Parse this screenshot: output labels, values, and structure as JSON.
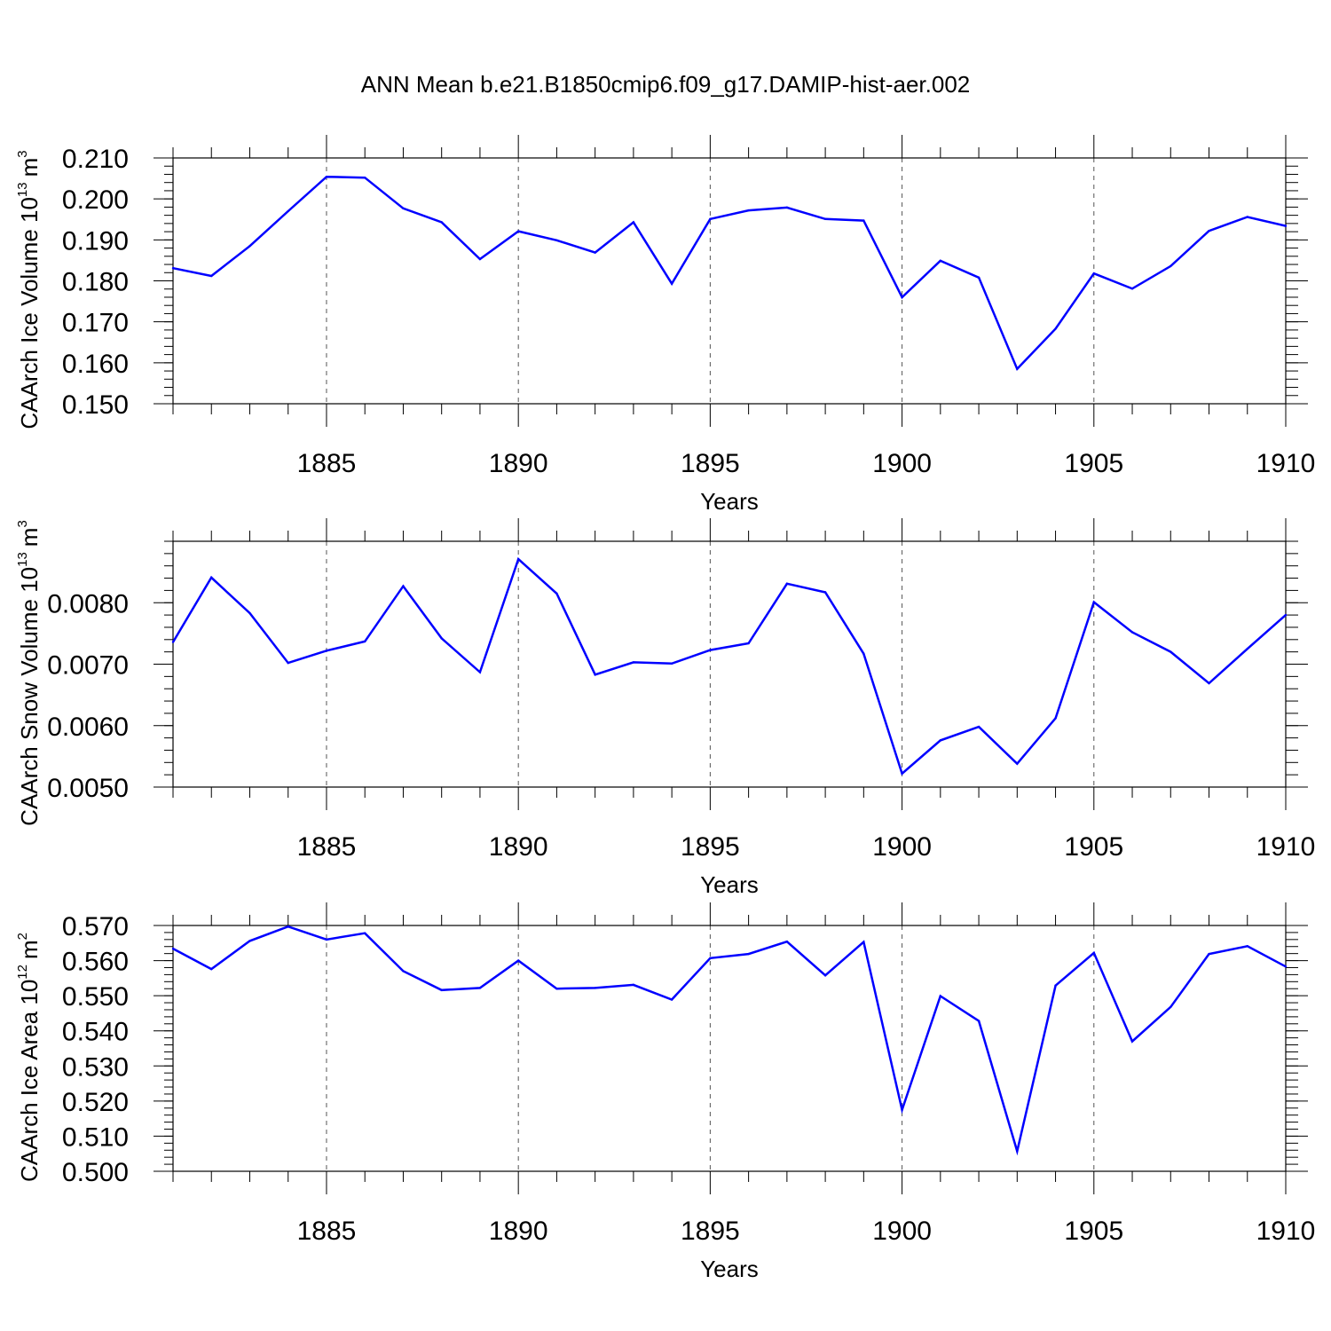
{
  "figure": {
    "title": "ANN Mean b.e21.B1850cmip6.f09_g17.DAMIP-hist-aer.002"
  },
  "chart_data": [
    {
      "type": "line",
      "title": "",
      "xlabel": "Years",
      "ylabel": "CAArch Ice Volume 10",
      "ylabel_exponent": "13",
      "ylabel_unit": "m",
      "ylabel_unit_exponent": "3",
      "xlim": [
        1881,
        1910
      ],
      "ylim": [
        0.15,
        0.21
      ],
      "x_ticks": [
        1885,
        1890,
        1895,
        1900,
        1905,
        1910
      ],
      "x_tick_labels": [
        "1885",
        "1890",
        "1895",
        "1900",
        "1905",
        "1910"
      ],
      "y_ticks": [
        0.15,
        0.16,
        0.17,
        0.18,
        0.19,
        0.2,
        0.21
      ],
      "y_tick_labels": [
        "0.150",
        "0.160",
        "0.170",
        "0.180",
        "0.190",
        "0.200",
        "0.210"
      ],
      "y_minor_step": 0.002,
      "grid": "dashed vertical at major x ticks",
      "color": "#0000ff",
      "x": [
        1881,
        1882,
        1883,
        1884,
        1885,
        1886,
        1887,
        1888,
        1889,
        1890,
        1891,
        1892,
        1893,
        1894,
        1895,
        1896,
        1897,
        1898,
        1899,
        1900,
        1901,
        1902,
        1903,
        1904,
        1905,
        1906,
        1907,
        1908,
        1909,
        1910
      ],
      "values": [
        0.1831,
        0.1812,
        0.1885,
        0.197,
        0.2054,
        0.2052,
        0.1977,
        0.1943,
        0.1853,
        0.1921,
        0.1899,
        0.1869,
        0.1943,
        0.1793,
        0.1951,
        0.1972,
        0.1979,
        0.1951,
        0.1947,
        0.176,
        0.1849,
        0.1808,
        0.1585,
        0.1683,
        0.1818,
        0.1781,
        0.1836,
        0.1922,
        0.1956,
        0.1934
      ]
    },
    {
      "type": "line",
      "title": "",
      "xlabel": "Years",
      "ylabel": "CAArch Snow Volume 10",
      "ylabel_exponent": "13",
      "ylabel_unit": "m",
      "ylabel_unit_exponent": "3",
      "xlim": [
        1881,
        1910
      ],
      "ylim": [
        0.005,
        0.009
      ],
      "x_ticks": [
        1885,
        1890,
        1895,
        1900,
        1905,
        1910
      ],
      "x_tick_labels": [
        "1885",
        "1890",
        "1895",
        "1900",
        "1905",
        "1910"
      ],
      "y_ticks": [
        0.005,
        0.006,
        0.007,
        0.008
      ],
      "y_tick_labels": [
        "0.0050",
        "0.0060",
        "0.0070",
        "0.0080"
      ],
      "y_minor_step": 0.0002,
      "grid": "dashed vertical at major x ticks",
      "color": "#0000ff",
      "x": [
        1881,
        1882,
        1883,
        1884,
        1885,
        1886,
        1887,
        1888,
        1889,
        1890,
        1891,
        1892,
        1893,
        1894,
        1895,
        1896,
        1897,
        1898,
        1899,
        1900,
        1901,
        1902,
        1903,
        1904,
        1905,
        1906,
        1907,
        1908,
        1909,
        1910
      ],
      "values": [
        0.00736,
        0.00841,
        0.00783,
        0.00702,
        0.00722,
        0.00737,
        0.00827,
        0.00742,
        0.00687,
        0.00871,
        0.00815,
        0.00683,
        0.00703,
        0.00701,
        0.00723,
        0.00734,
        0.00831,
        0.00817,
        0.00717,
        0.00522,
        0.00576,
        0.00598,
        0.00538,
        0.00612,
        0.00801,
        0.00752,
        0.0072,
        0.00669,
        0.00725,
        0.0078
      ]
    },
    {
      "type": "line",
      "title": "",
      "xlabel": "Years",
      "ylabel": "CAArch Ice Area 10",
      "ylabel_exponent": "12",
      "ylabel_unit": "m",
      "ylabel_unit_exponent": "2",
      "xlim": [
        1881,
        1910
      ],
      "ylim": [
        0.5,
        0.57
      ],
      "x_ticks": [
        1885,
        1890,
        1895,
        1900,
        1905,
        1910
      ],
      "x_tick_labels": [
        "1885",
        "1890",
        "1895",
        "1900",
        "1905",
        "1910"
      ],
      "y_ticks": [
        0.5,
        0.51,
        0.52,
        0.53,
        0.54,
        0.55,
        0.56,
        0.57
      ],
      "y_tick_labels": [
        "0.500",
        "0.510",
        "0.520",
        "0.530",
        "0.540",
        "0.550",
        "0.560",
        "0.570"
      ],
      "y_minor_step": 0.002,
      "grid": "dashed vertical at major x ticks",
      "color": "#0000ff",
      "x": [
        1881,
        1882,
        1883,
        1884,
        1885,
        1886,
        1887,
        1888,
        1889,
        1890,
        1891,
        1892,
        1893,
        1894,
        1895,
        1896,
        1897,
        1898,
        1899,
        1900,
        1901,
        1902,
        1903,
        1904,
        1905,
        1906,
        1907,
        1908,
        1909,
        1910
      ],
      "values": [
        0.5634,
        0.5576,
        0.5656,
        0.5697,
        0.566,
        0.5678,
        0.557,
        0.5516,
        0.5522,
        0.56,
        0.552,
        0.5522,
        0.5531,
        0.5489,
        0.5607,
        0.5619,
        0.5654,
        0.5558,
        0.5653,
        0.5175,
        0.5499,
        0.5428,
        0.5057,
        0.5529,
        0.5622,
        0.537,
        0.5468,
        0.5619,
        0.5641,
        0.5583
      ]
    }
  ]
}
